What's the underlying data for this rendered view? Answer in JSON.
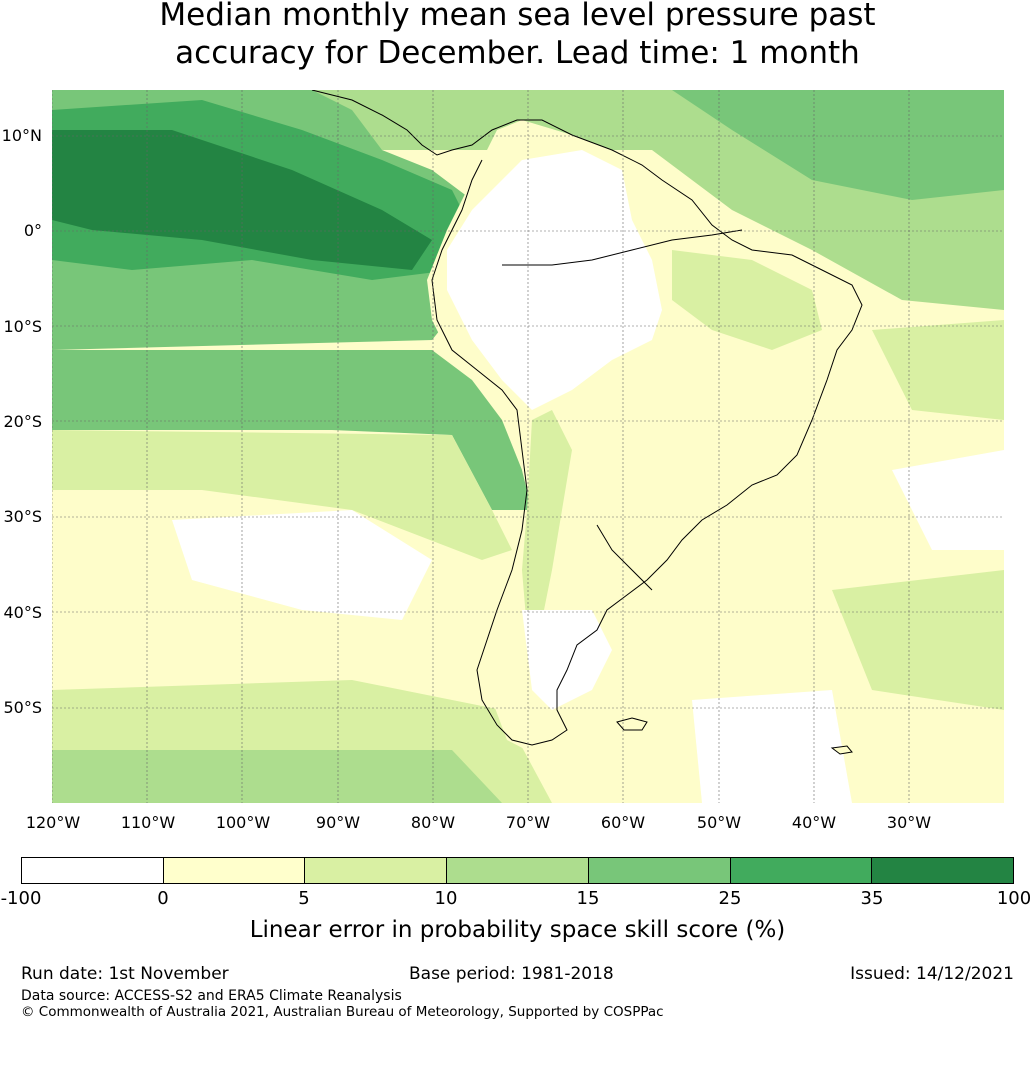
{
  "title": {
    "line1": "Median monthly mean sea level pressure past",
    "line2": "accuracy for December. Lead time: 1 month"
  },
  "map": {
    "lat_labels": [
      "10°N",
      "0°",
      "10°S",
      "20°S",
      "30°S",
      "40°S",
      "50°S"
    ],
    "lon_labels": [
      "120°W",
      "110°W",
      "100°W",
      "90°W",
      "80°W",
      "70°W",
      "60°W",
      "50°W",
      "40°W",
      "30°W"
    ],
    "ocean_colors": {
      "white": "#ffffff",
      "c0": "#fefdca",
      "c5": "#d9f0a3",
      "c10": "#addd8e",
      "c15": "#78c679",
      "c25": "#41ab5d",
      "c35": "#238443"
    }
  },
  "colorbar": {
    "ticks": [
      "-100",
      "0",
      "5",
      "10",
      "15",
      "25",
      "35",
      "100"
    ],
    "colors": [
      "#ffffff",
      "#ffffcc",
      "#d9f0a3",
      "#addd8e",
      "#78c679",
      "#41ab5d",
      "#238443"
    ],
    "label": "Linear error in probability space skill score (%)"
  },
  "footer": {
    "run_date": "Run date: 1st November",
    "base_period": "Base period: 1981-2018",
    "issued": "Issued: 14/12/2021",
    "data_source": "Data source: ACCESS-S2 and ERA5 Climate Reanalysis",
    "copyright": "© Commonwealth of Australia 2021, Australian Bureau of Meteorology, Supported by COSPPac"
  }
}
